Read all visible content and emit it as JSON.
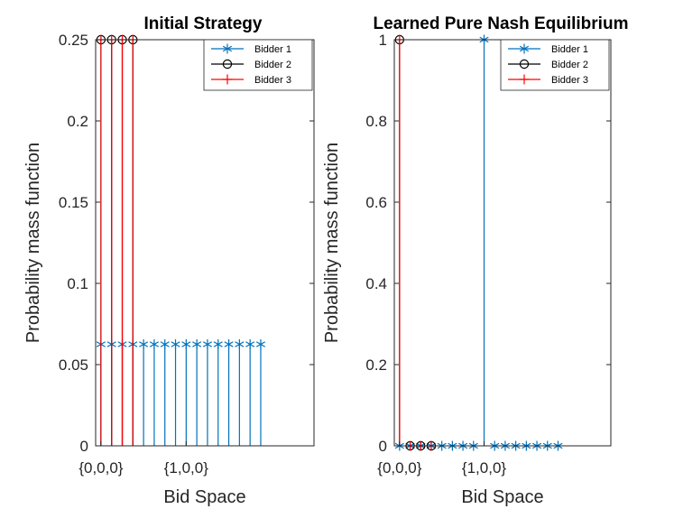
{
  "chart_data": [
    {
      "type": "stem",
      "title": "Initial Strategy",
      "xlabel": "Bid Space",
      "ylabel": "Probability mass function",
      "xlim": [
        -0.5,
        20
      ],
      "ylim": [
        0,
        0.25
      ],
      "yticks": [
        "0",
        "0.05",
        "0.1",
        "0.15",
        "0.2",
        "0.25"
      ],
      "xticks": [
        {
          "x": 0,
          "label": "{0,0,0}"
        },
        {
          "x": 8,
          "label": "{1,0,0}"
        }
      ],
      "legend_position": "top-right",
      "series": [
        {
          "name": "Bidder 1",
          "marker": "asterisk",
          "color": "#0072BD",
          "x": [
            0,
            1,
            2,
            3,
            4,
            5,
            6,
            7,
            8,
            9,
            10,
            11,
            12,
            13,
            14,
            15
          ],
          "y": [
            0.0625,
            0.0625,
            0.0625,
            0.0625,
            0.0625,
            0.0625,
            0.0625,
            0.0625,
            0.0625,
            0.0625,
            0.0625,
            0.0625,
            0.0625,
            0.0625,
            0.0625,
            0.0625
          ]
        },
        {
          "name": "Bidder 2",
          "marker": "circle",
          "color": "#000000",
          "x": [
            0,
            1,
            2,
            3
          ],
          "y": [
            0.25,
            0.25,
            0.25,
            0.25
          ]
        },
        {
          "name": "Bidder 3",
          "marker": "plus",
          "color": "#FF0000",
          "x": [
            0,
            1,
            2,
            3
          ],
          "y": [
            0.25,
            0.25,
            0.25,
            0.25
          ]
        }
      ]
    },
    {
      "type": "stem",
      "title": "Learned Pure Nash Equilibrium",
      "xlabel": "Bid Space",
      "ylabel": "Probability mass function",
      "xlim": [
        -0.5,
        20
      ],
      "ylim": [
        0,
        1
      ],
      "yticks": [
        "0",
        "0.2",
        "0.4",
        "0.6",
        "0.8",
        "1"
      ],
      "xticks": [
        {
          "x": 0,
          "label": "{0,0,0}"
        },
        {
          "x": 8,
          "label": "{1,0,0}"
        }
      ],
      "legend_position": "top-right",
      "series": [
        {
          "name": "Bidder 1",
          "marker": "asterisk",
          "color": "#0072BD",
          "x": [
            0,
            1,
            2,
            3,
            4,
            5,
            6,
            7,
            8,
            9,
            10,
            11,
            12,
            13,
            14,
            15
          ],
          "y": [
            0,
            0,
            0,
            0,
            0,
            0,
            0,
            0,
            1,
            0,
            0,
            0,
            0,
            0,
            0,
            0
          ]
        },
        {
          "name": "Bidder 2",
          "marker": "circle",
          "color": "#000000",
          "x": [
            0,
            1,
            2,
            3
          ],
          "y": [
            1,
            0,
            0,
            0
          ]
        },
        {
          "name": "Bidder 3",
          "marker": "plus",
          "color": "#FF0000",
          "x": [
            0,
            1,
            2,
            3
          ],
          "y": [
            1,
            0,
            0,
            0
          ]
        }
      ]
    }
  ]
}
